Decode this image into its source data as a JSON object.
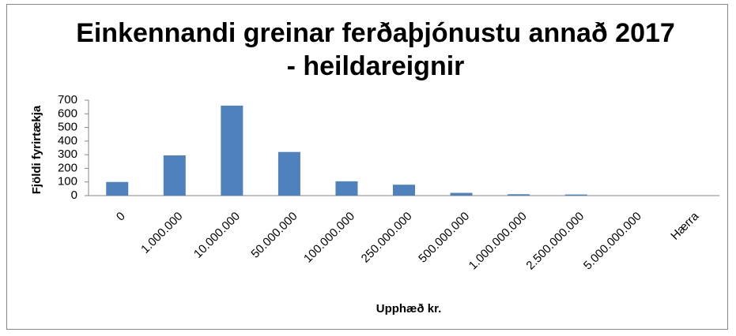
{
  "chart_data": {
    "type": "bar",
    "title": [
      "Einkennandi greinar ferðaþjónustu annað 2017",
      "- heildareignir"
    ],
    "x_label": "Upphæð kr.",
    "y_label": "Fjöldi fyrirtækja",
    "categories": [
      "0",
      "1.000.000",
      "10.000.000",
      "50.000.000",
      "100.000.000",
      "250.000.000",
      "500.000.000",
      "1.000.000.000",
      "2.500.000.000",
      "5.000.000.000",
      "Hærra"
    ],
    "values": [
      100,
      295,
      660,
      320,
      105,
      80,
      20,
      10,
      8,
      0,
      0
    ],
    "color": "#4f81bd",
    "ylim": [
      0,
      700
    ],
    "yticks": [
      0,
      100,
      200,
      300,
      400,
      500,
      600,
      700
    ],
    "grid": false
  }
}
